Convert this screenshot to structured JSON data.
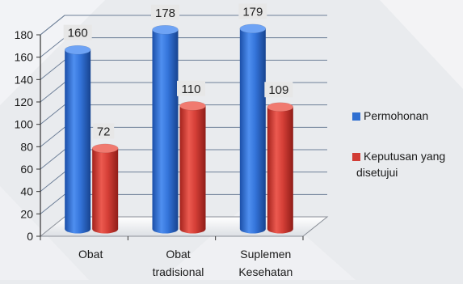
{
  "chart_data": {
    "type": "bar",
    "categories": [
      [
        "Obat"
      ],
      [
        "Obat",
        "tradisional"
      ],
      [
        "Suplemen",
        "Kesehatan"
      ]
    ],
    "series": [
      {
        "name": "Permohonan",
        "values": [
          160,
          178,
          179
        ],
        "color": "#2f6fd1"
      },
      {
        "name": [
          "Keputusan yang",
          "disetujui"
        ],
        "values": [
          72,
          110,
          109
        ],
        "color": "#d13c35"
      }
    ],
    "y_ticks": [
      "0",
      "20",
      "40",
      "60",
      "80",
      "100",
      "120",
      "140",
      "160",
      "180"
    ],
    "ylim": [
      0,
      180
    ],
    "grid": true,
    "legend_position": "right",
    "style": "3d-cylinder"
  }
}
